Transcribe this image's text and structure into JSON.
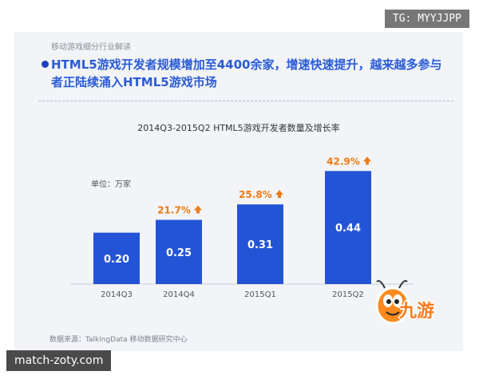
{
  "watermark_top": "TG: MYYJJPP",
  "watermark_bottom": "match-zoty.com",
  "logo_text": "九游",
  "slide": {
    "kicker": "移动游戏细分行业解读",
    "headline": "HTML5游戏开发者规模增加至4400余家，增速快速提升，越来越多参与者正陆续涌入HTML5游戏市场",
    "source": "数据来源：TalkingData 移动数据研究中心"
  },
  "chart_data": {
    "type": "bar",
    "title": "2014Q3-2015Q2 HTML5游戏开发者数量及增长率",
    "unit_label": "单位：万家",
    "categories": [
      "2014Q3",
      "2014Q4",
      "2015Q1",
      "2015Q2"
    ],
    "values": [
      0.2,
      0.25,
      0.31,
      0.44
    ],
    "value_labels": [
      "0.20",
      "0.25",
      "0.31",
      "0.44"
    ],
    "growth_labels": [
      "",
      "21.7%",
      "25.8%",
      "42.9%"
    ],
    "bar_color": "#2454d6",
    "growth_color": "#f07a12",
    "ylim": [
      0,
      0.5
    ]
  }
}
